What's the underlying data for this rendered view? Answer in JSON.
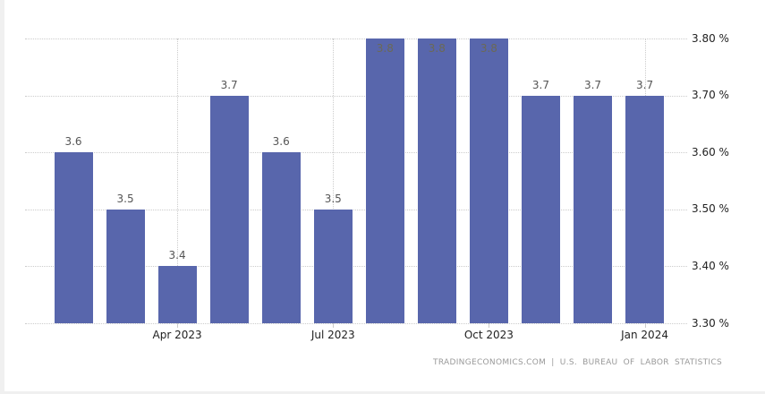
{
  "chart_data": {
    "type": "bar",
    "title": "",
    "xlabel": "",
    "ylabel": "",
    "values": [
      3.6,
      3.5,
      3.4,
      3.7,
      3.6,
      3.5,
      3.8,
      3.8,
      3.8,
      3.7,
      3.7,
      3.7
    ],
    "bar_labels": [
      "3.6",
      "3.5",
      "3.4",
      "3.7",
      "3.6",
      "3.5",
      "3.8",
      "3.8",
      "3.8",
      "3.7",
      "3.7",
      "3.7"
    ],
    "x_ticks": [
      {
        "bar_index": 2,
        "label": "Apr 2023"
      },
      {
        "bar_index": 5,
        "label": "Jul 2023"
      },
      {
        "bar_index": 8,
        "label": "Oct 2023"
      },
      {
        "bar_index": 11,
        "label": "Jan 2024"
      }
    ],
    "y_ticks": [
      {
        "value": 3.3,
        "label": "3.30 %"
      },
      {
        "value": 3.4,
        "label": "3.40 %"
      },
      {
        "value": 3.5,
        "label": "3.50 %"
      },
      {
        "value": 3.6,
        "label": "3.60 %"
      },
      {
        "value": 3.7,
        "label": "3.70 %"
      },
      {
        "value": 3.8,
        "label": "3.80 %"
      }
    ],
    "ylim": [
      3.3,
      3.8
    ],
    "grid": "dotted horizontal gridlines at each y tick; dotted vertical gridlines at quarter ticks; grid drawn behind bars",
    "legend": "none",
    "y_axis_side": "right"
  },
  "footer": {
    "source_text": "TRADINGECONOMICS.COM | U.S. BUREAU OF LABOR STATISTICS"
  },
  "colors": {
    "bar": "#5866ac",
    "value_label": "#555555",
    "value_label_inside": "#6b6955",
    "axis_label": "#222222",
    "gridline": "#cccccc",
    "footer_text": "#999999",
    "border_band": "#f0f0f0",
    "background": "#ffffff"
  }
}
